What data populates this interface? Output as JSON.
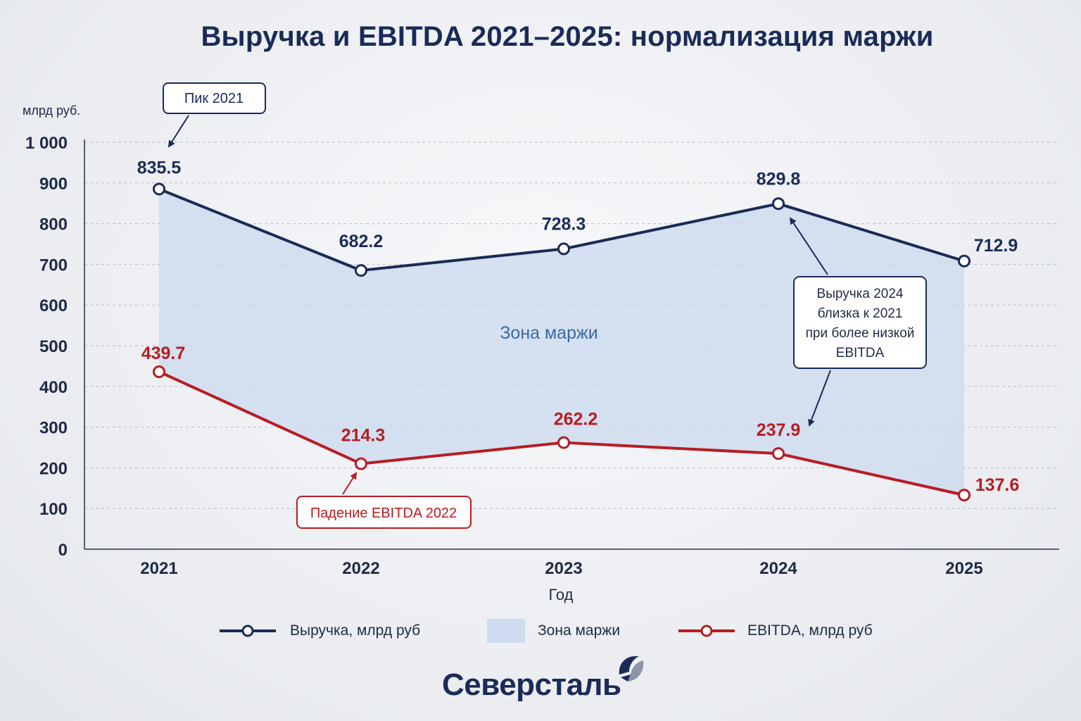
{
  "chart_data": {
    "type": "line",
    "title": "Выручка и EBITDA 2021–2025: нормализация маржи",
    "ylabel": "млрд руб.",
    "xlabel": "Год",
    "categories": [
      "2021",
      "2022",
      "2023",
      "2024",
      "2025"
    ],
    "ylim": [
      0,
      1000
    ],
    "yticks": [
      0,
      100,
      200,
      300,
      400,
      500,
      600,
      700,
      800,
      900,
      1000
    ],
    "ytick_labels": [
      "0",
      "100",
      "200",
      "300",
      "400",
      "500",
      "600",
      "700",
      "800",
      "900",
      "1 000"
    ],
    "grid": true,
    "series": [
      {
        "name": "Выручка, млрд руб",
        "values": [
          835.5,
          682.2,
          728.3,
          829.8,
          712.9
        ],
        "plot_values": [
          885,
          685,
          738,
          849,
          708
        ],
        "color": "#1a2b57"
      },
      {
        "name": "EBITDA, млрд руб",
        "values": [
          439.7,
          214.3,
          262.2,
          237.9,
          137.6
        ],
        "plot_values": [
          436,
          210,
          262,
          235,
          133
        ],
        "color": "#b81c22"
      }
    ],
    "area_label": "Зона маржи",
    "area_color": "#cfdcef",
    "annotations": {
      "peak": "Пик 2021",
      "drop": "Падение EBITDA 2022",
      "note": [
        "Выручка 2024",
        "близка к 2021",
        "при более низкой",
        "EBITDA"
      ]
    }
  },
  "legend": {
    "revenue": "Выручка, млрд руб",
    "margin": "Зона маржи",
    "ebitda": "EBITDA, млрд руб"
  },
  "logo": {
    "text": "Северсталь"
  }
}
